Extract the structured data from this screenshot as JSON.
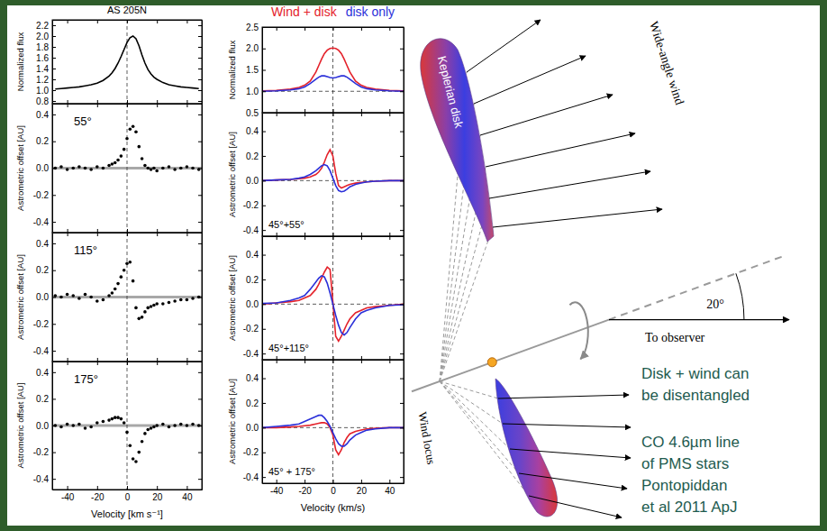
{
  "chart_data": [
    {
      "type": "line",
      "title": "AS 205N",
      "y_label": "Normalized flux",
      "tick_labels": "y",
      "xlim": [
        -50,
        50
      ],
      "ylim": [
        0.75,
        2.3
      ],
      "xticks": [
        -40,
        -20,
        0,
        20,
        40
      ],
      "yticks": [
        0.8,
        {
          "value": 1,
          "label": "1.0"
        },
        1.2,
        1.4,
        1.6,
        1.8,
        {
          "value": 2,
          "label": "2.0"
        },
        2.2
      ],
      "vline": 0,
      "x": [
        -48,
        -44,
        -40,
        -36,
        -32,
        -28,
        -24,
        -20,
        -16,
        -12,
        -10,
        -8,
        -6,
        -4,
        -2,
        0,
        2,
        4,
        6,
        8,
        10,
        12,
        14,
        16,
        18,
        20,
        24,
        28,
        32,
        36,
        40,
        44,
        48
      ],
      "series": [
        {
          "color": "#000000",
          "values": [
            1.02,
            1.03,
            1.04,
            1.05,
            1.06,
            1.08,
            1.1,
            1.13,
            1.18,
            1.26,
            1.32,
            1.4,
            1.5,
            1.62,
            1.75,
            1.88,
            1.97,
            2.0,
            1.95,
            1.82,
            1.65,
            1.5,
            1.38,
            1.3,
            1.24,
            1.2,
            1.14,
            1.1,
            1.08,
            1.06,
            1.05,
            1.04,
            1.03
          ]
        }
      ]
    },
    {
      "type": "scatter",
      "annotation": "55°",
      "y_label": "Astrometric offset [AU]",
      "tick_labels": "y",
      "xlim": [
        -50,
        50
      ],
      "ylim": [
        -0.48,
        0.48
      ],
      "xticks": [
        -40,
        -20,
        0,
        20,
        40
      ],
      "yticks": [
        -0.4,
        -0.2,
        {
          "value": 0,
          "label": "0.0"
        },
        0.2,
        0.4
      ],
      "hline": 0,
      "vline": 0,
      "x": [
        -48,
        -44,
        -40,
        -36,
        -32,
        -28,
        -24,
        -20,
        -16,
        -12,
        -10,
        -8,
        -6,
        -4,
        -2,
        0,
        2,
        4,
        6,
        8,
        10,
        12,
        14,
        16,
        18,
        20,
        24,
        28,
        32,
        36,
        40,
        44,
        48
      ],
      "series": [
        {
          "color": "#000000",
          "marker": "circle",
          "values": [
            0,
            0.01,
            -0.01,
            0,
            0.01,
            0,
            -0.01,
            0.01,
            0,
            0.02,
            0.03,
            0.04,
            0.06,
            0.09,
            0.14,
            0.22,
            0.29,
            0.31,
            0.27,
            0.16,
            0.07,
            0.02,
            0,
            -0.01,
            0,
            -0.02,
            0,
            0.01,
            -0.01,
            0,
            0.01,
            0,
            -0.01
          ]
        }
      ]
    },
    {
      "type": "scatter",
      "annotation": "115°",
      "y_label": "Astrometric offset [AU]",
      "tick_labels": "y",
      "xlim": [
        -50,
        50
      ],
      "ylim": [
        -0.48,
        0.48
      ],
      "xticks": [
        -40,
        -20,
        0,
        20,
        40
      ],
      "yticks": [
        -0.4,
        -0.2,
        {
          "value": 0,
          "label": "0.0"
        },
        0.2,
        0.4
      ],
      "hline": 0,
      "vline": 0,
      "x": [
        -48,
        -44,
        -40,
        -36,
        -32,
        -28,
        -24,
        -20,
        -16,
        -12,
        -10,
        -8,
        -6,
        -4,
        -2,
        0,
        2,
        4,
        6,
        8,
        10,
        12,
        14,
        16,
        18,
        20,
        24,
        28,
        32,
        36,
        40,
        44,
        48
      ],
      "series": [
        {
          "color": "#000000",
          "marker": "circle",
          "values": [
            0.01,
            0,
            0.02,
            0.01,
            -0.01,
            0.02,
            0,
            -0.03,
            -0.02,
            0.01,
            0.03,
            0.06,
            0.1,
            0.15,
            0.2,
            0.25,
            0.26,
            0.12,
            -0.08,
            -0.16,
            -0.15,
            -0.11,
            -0.08,
            -0.07,
            -0.06,
            -0.05,
            -0.05,
            -0.04,
            -0.03,
            -0.02,
            -0.02,
            -0.01,
            0
          ]
        }
      ]
    },
    {
      "type": "scatter",
      "annotation": "175°",
      "y_label": "Astrometric offset [AU]",
      "x_label": "Velocity [km s⁻¹]",
      "xlim": [
        -50,
        50
      ],
      "ylim": [
        -0.48,
        0.48
      ],
      "xticks": [
        -40,
        -20,
        0,
        20,
        40
      ],
      "yticks": [
        -0.4,
        -0.2,
        {
          "value": 0,
          "label": "0.0"
        },
        0.2,
        0.4
      ],
      "hline": 0,
      "vline": 0,
      "x": [
        -48,
        -44,
        -40,
        -36,
        -32,
        -28,
        -24,
        -20,
        -16,
        -12,
        -10,
        -8,
        -6,
        -4,
        -2,
        0,
        2,
        4,
        6,
        8,
        10,
        12,
        14,
        16,
        18,
        20,
        24,
        28,
        32,
        36,
        40,
        44,
        48
      ],
      "series": [
        {
          "color": "#000000",
          "marker": "circle",
          "values": [
            0,
            -0.01,
            0.01,
            0,
            0.01,
            -0.02,
            -0.01,
            0.02,
            0.03,
            0.04,
            0.05,
            0.06,
            0.06,
            0.05,
            0.02,
            -0.05,
            -0.15,
            -0.25,
            -0.27,
            -0.2,
            -0.12,
            -0.06,
            -0.03,
            -0.02,
            -0.01,
            0,
            0.01,
            -0.01,
            0,
            0.01,
            0,
            0.01,
            0
          ]
        }
      ]
    },
    {
      "type": "line",
      "y_label": "Normalized flux",
      "tick_labels": "y",
      "legend": "top",
      "xlim": [
        -50,
        50
      ],
      "ylim": [
        0.5,
        2.5
      ],
      "xticks": [
        -40,
        -20,
        0,
        20,
        40
      ],
      "yticks": [
        0.5,
        {
          "value": 1,
          "label": "1.0"
        },
        1.5,
        {
          "value": 2,
          "label": "2.0"
        },
        2.5
      ],
      "hline": 1,
      "vline": 0,
      "x": [
        -50,
        -40,
        -30,
        -24,
        -20,
        -16,
        -12,
        -10,
        -8,
        -6,
        -4,
        -2,
        0,
        2,
        4,
        6,
        8,
        10,
        12,
        16,
        20,
        24,
        30,
        40,
        50
      ],
      "series": [
        {
          "name": "Wind + disk",
          "color": "#e4222b",
          "values": [
            1.01,
            1.02,
            1.05,
            1.09,
            1.14,
            1.24,
            1.45,
            1.6,
            1.75,
            1.88,
            1.96,
            2.0,
            2.01,
            2.0,
            1.96,
            1.88,
            1.75,
            1.6,
            1.45,
            1.24,
            1.14,
            1.09,
            1.05,
            1.02,
            1.01
          ]
        },
        {
          "name": "disk only",
          "color": "#2b30d9",
          "values": [
            1.0,
            1.01,
            1.03,
            1.06,
            1.1,
            1.18,
            1.28,
            1.33,
            1.36,
            1.36,
            1.34,
            1.32,
            1.31,
            1.32,
            1.34,
            1.36,
            1.36,
            1.33,
            1.28,
            1.18,
            1.1,
            1.06,
            1.03,
            1.01,
            1.0
          ]
        }
      ]
    },
    {
      "type": "line",
      "annotation": "45°+55°",
      "y_label": "Astrometric offset [AU]",
      "tick_labels": "y",
      "xlim": [
        -50,
        50
      ],
      "ylim": [
        -0.45,
        0.55
      ],
      "xticks": [
        -40,
        -20,
        0,
        20,
        40
      ],
      "yticks": [
        -0.4,
        -0.2,
        {
          "value": 0,
          "label": "0.0"
        },
        0.2,
        0.4
      ],
      "hline": 0,
      "vline": 0,
      "x": [
        -50,
        -40,
        -30,
        -24,
        -20,
        -16,
        -12,
        -10,
        -8,
        -6,
        -4,
        -2,
        0,
        2,
        4,
        6,
        8,
        10,
        12,
        16,
        20,
        24,
        30,
        40,
        50
      ],
      "series": [
        {
          "color": "#e4222b",
          "values": [
            0,
            0.005,
            0.01,
            0.015,
            0.02,
            0.03,
            0.05,
            0.07,
            0.1,
            0.15,
            0.21,
            0.25,
            0.2,
            0.06,
            -0.04,
            -0.06,
            -0.05,
            -0.04,
            -0.03,
            -0.02,
            -0.015,
            -0.01,
            -0.005,
            0,
            0
          ]
        },
        {
          "color": "#2b30d9",
          "values": [
            0,
            0.005,
            0.01,
            0.02,
            0.03,
            0.05,
            0.08,
            0.1,
            0.12,
            0.13,
            0.12,
            0.08,
            0.02,
            -0.04,
            -0.08,
            -0.09,
            -0.085,
            -0.07,
            -0.05,
            -0.03,
            -0.02,
            -0.01,
            -0.005,
            0,
            0
          ]
        }
      ]
    },
    {
      "type": "line",
      "annotation": "45°+115°",
      "y_label": "Astrometric offset [AU]",
      "tick_labels": "y",
      "xlim": [
        -50,
        50
      ],
      "ylim": [
        -0.45,
        0.55
      ],
      "xticks": [
        -40,
        -20,
        0,
        20,
        40
      ],
      "yticks": [
        -0.4,
        -0.2,
        {
          "value": 0,
          "label": "0.0"
        },
        0.2,
        0.4
      ],
      "hline": 0,
      "vline": 0,
      "x": [
        -50,
        -40,
        -30,
        -24,
        -20,
        -16,
        -12,
        -10,
        -8,
        -6,
        -4,
        -2,
        0,
        2,
        4,
        6,
        8,
        10,
        12,
        16,
        20,
        24,
        30,
        40,
        50
      ],
      "series": [
        {
          "color": "#e4222b",
          "values": [
            0,
            0.01,
            0.02,
            0.03,
            0.05,
            0.07,
            0.12,
            0.16,
            0.21,
            0.26,
            0.3,
            0.28,
            0.02,
            -0.26,
            -0.3,
            -0.26,
            -0.21,
            -0.16,
            -0.12,
            -0.07,
            -0.05,
            -0.03,
            -0.02,
            -0.01,
            0
          ]
        },
        {
          "color": "#2b30d9",
          "values": [
            0.005,
            0.01,
            0.03,
            0.05,
            0.07,
            0.12,
            0.18,
            0.21,
            0.23,
            0.22,
            0.17,
            0.09,
            0,
            -0.09,
            -0.17,
            -0.23,
            -0.25,
            -0.23,
            -0.19,
            -0.12,
            -0.07,
            -0.05,
            -0.03,
            -0.01,
            -0.005
          ]
        }
      ]
    },
    {
      "type": "line",
      "annotation": "45° + 175°",
      "y_label": "Astrometric offset [AU]",
      "x_label": "Velocity (km/s)",
      "xlim": [
        -50,
        50
      ],
      "ylim": [
        -0.45,
        0.55
      ],
      "xticks": [
        -40,
        -20,
        0,
        20,
        40
      ],
      "yticks": [
        -0.4,
        -0.2,
        {
          "value": 0,
          "label": "0.0"
        },
        0.2,
        0.4
      ],
      "hline": 0,
      "vline": 0,
      "x": [
        -50,
        -40,
        -30,
        -24,
        -20,
        -16,
        -12,
        -10,
        -8,
        -6,
        -4,
        -2,
        0,
        2,
        4,
        6,
        8,
        10,
        12,
        16,
        20,
        24,
        30,
        40,
        50
      ],
      "series": [
        {
          "color": "#e4222b",
          "values": [
            0,
            0,
            0.005,
            0.01,
            0.015,
            0.02,
            0.03,
            0.035,
            0.04,
            0.04,
            0.03,
            0,
            -0.06,
            -0.18,
            -0.22,
            -0.18,
            -0.12,
            -0.08,
            -0.05,
            -0.03,
            -0.02,
            -0.01,
            -0.005,
            0,
            0
          ]
        },
        {
          "color": "#2b30d9",
          "values": [
            0,
            0.01,
            0.02,
            0.03,
            0.05,
            0.07,
            0.09,
            0.1,
            0.1,
            0.08,
            0.05,
            0.01,
            -0.04,
            -0.09,
            -0.13,
            -0.15,
            -0.15,
            -0.13,
            -0.1,
            -0.06,
            -0.04,
            -0.02,
            -0.01,
            0,
            0
          ]
        }
      ]
    }
  ],
  "diagram": {
    "disk_label": "Keplerian disk",
    "wind_label": "Wide-angle wind",
    "locus_label": "Wind locus",
    "observer_label": "To observer",
    "inclination": {
      "value": 20,
      "label": "20°"
    },
    "notes": [
      [
        "Disk + wind can",
        "be disentangled"
      ],
      [
        "CO 4.6µm line",
        "of PMS stars",
        "Pontopiddan",
        "et al 2011 ApJ"
      ]
    ]
  }
}
